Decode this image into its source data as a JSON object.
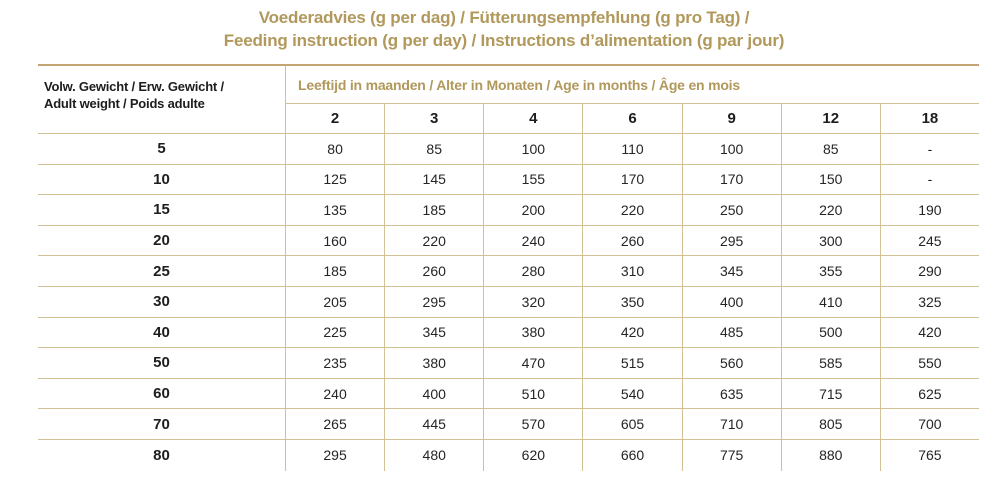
{
  "title": {
    "line1": "Voederadvies (g per dag) / Fütterungsempfehlung (g pro Tag) /",
    "line2": "Feeding instruction (g per day) / Instructions d’alimentation (g par jour)"
  },
  "table": {
    "row_header": {
      "line1": "Volw. Gewicht / Erw. Gewicht /",
      "line2": "Adult weight / Poids adulte"
    },
    "col_header": "Leeftijd in maanden / Alter in Monaten / Age in months / Âge en mois",
    "age_columns": [
      "2",
      "3",
      "4",
      "6",
      "9",
      "12",
      "18"
    ],
    "rows": [
      {
        "weight": "5",
        "values": [
          "80",
          "85",
          "100",
          "110",
          "100",
          "85",
          "-"
        ]
      },
      {
        "weight": "10",
        "values": [
          "125",
          "145",
          "155",
          "170",
          "170",
          "150",
          "-"
        ]
      },
      {
        "weight": "15",
        "values": [
          "135",
          "185",
          "200",
          "220",
          "250",
          "220",
          "190"
        ]
      },
      {
        "weight": "20",
        "values": [
          "160",
          "220",
          "240",
          "260",
          "295",
          "300",
          "245"
        ]
      },
      {
        "weight": "25",
        "values": [
          "185",
          "260",
          "280",
          "310",
          "345",
          "355",
          "290"
        ]
      },
      {
        "weight": "30",
        "values": [
          "205",
          "295",
          "320",
          "350",
          "400",
          "410",
          "325"
        ]
      },
      {
        "weight": "40",
        "values": [
          "225",
          "345",
          "380",
          "420",
          "485",
          "500",
          "420"
        ]
      },
      {
        "weight": "50",
        "values": [
          "235",
          "380",
          "470",
          "515",
          "560",
          "585",
          "550"
        ]
      },
      {
        "weight": "60",
        "values": [
          "240",
          "400",
          "510",
          "540",
          "635",
          "715",
          "625"
        ]
      },
      {
        "weight": "70",
        "values": [
          "265",
          "445",
          "570",
          "605",
          "710",
          "805",
          "700"
        ]
      },
      {
        "weight": "80",
        "values": [
          "295",
          "480",
          "620",
          "660",
          "775",
          "880",
          "765"
        ]
      }
    ]
  },
  "colors": {
    "gold_accent": "#b1985b",
    "table_border": "#d2c194",
    "table_border_top": "#c2a572",
    "text": "#1d1d1b"
  }
}
